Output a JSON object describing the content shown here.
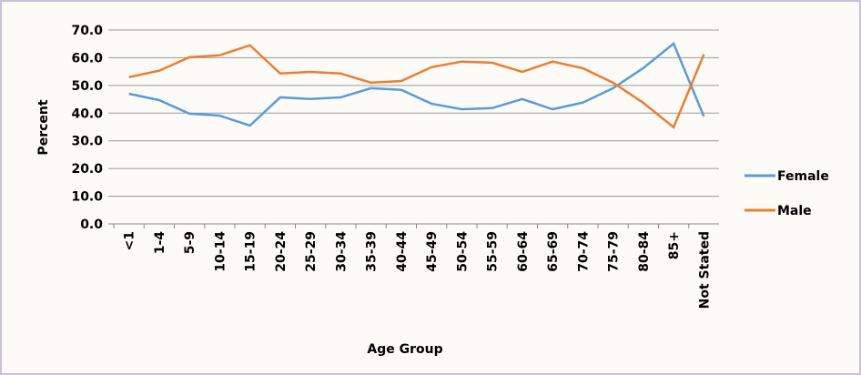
{
  "chart_data": {
    "type": "line",
    "x_label": "Age Group",
    "y_label": "Percent",
    "categories": [
      "<1",
      "1-4",
      "5-9",
      "10-14",
      "15-19",
      "20-24",
      "25-29",
      "30-34",
      "35-39",
      "40-44",
      "45-49",
      "50-54",
      "55-59",
      "60-64",
      "65-69",
      "70-74",
      "75-79",
      "80-84",
      "85+",
      "Not Stated"
    ],
    "series": [
      {
        "name": "Female",
        "color": "#5b9bd5",
        "values": [
          47.0,
          44.7,
          39.8,
          39.1,
          35.5,
          45.7,
          45.1,
          45.7,
          49.0,
          48.4,
          43.4,
          41.4,
          41.8,
          45.1,
          41.4,
          43.8,
          49.0,
          56.3,
          65.1,
          38.8
        ]
      },
      {
        "name": "Male",
        "color": "#ed7d31",
        "values": [
          53.0,
          55.3,
          60.2,
          60.9,
          64.5,
          54.3,
          54.9,
          54.3,
          51.0,
          51.6,
          56.6,
          58.6,
          58.2,
          54.9,
          58.6,
          56.2,
          51.0,
          43.7,
          34.9,
          61.2
        ]
      }
    ],
    "ylim": [
      0,
      70
    ],
    "yticks": [
      {
        "value": 0,
        "label": "0.0"
      },
      {
        "value": 10,
        "label": "10.0"
      },
      {
        "value": 20,
        "label": "20.0"
      },
      {
        "value": 30,
        "label": "30.0"
      },
      {
        "value": 40,
        "label": "40.0"
      },
      {
        "value": 50,
        "label": "50.0"
      },
      {
        "value": 60,
        "label": "60.0"
      },
      {
        "value": 70,
        "label": "70.0"
      }
    ],
    "grid": true,
    "legend": "right"
  }
}
